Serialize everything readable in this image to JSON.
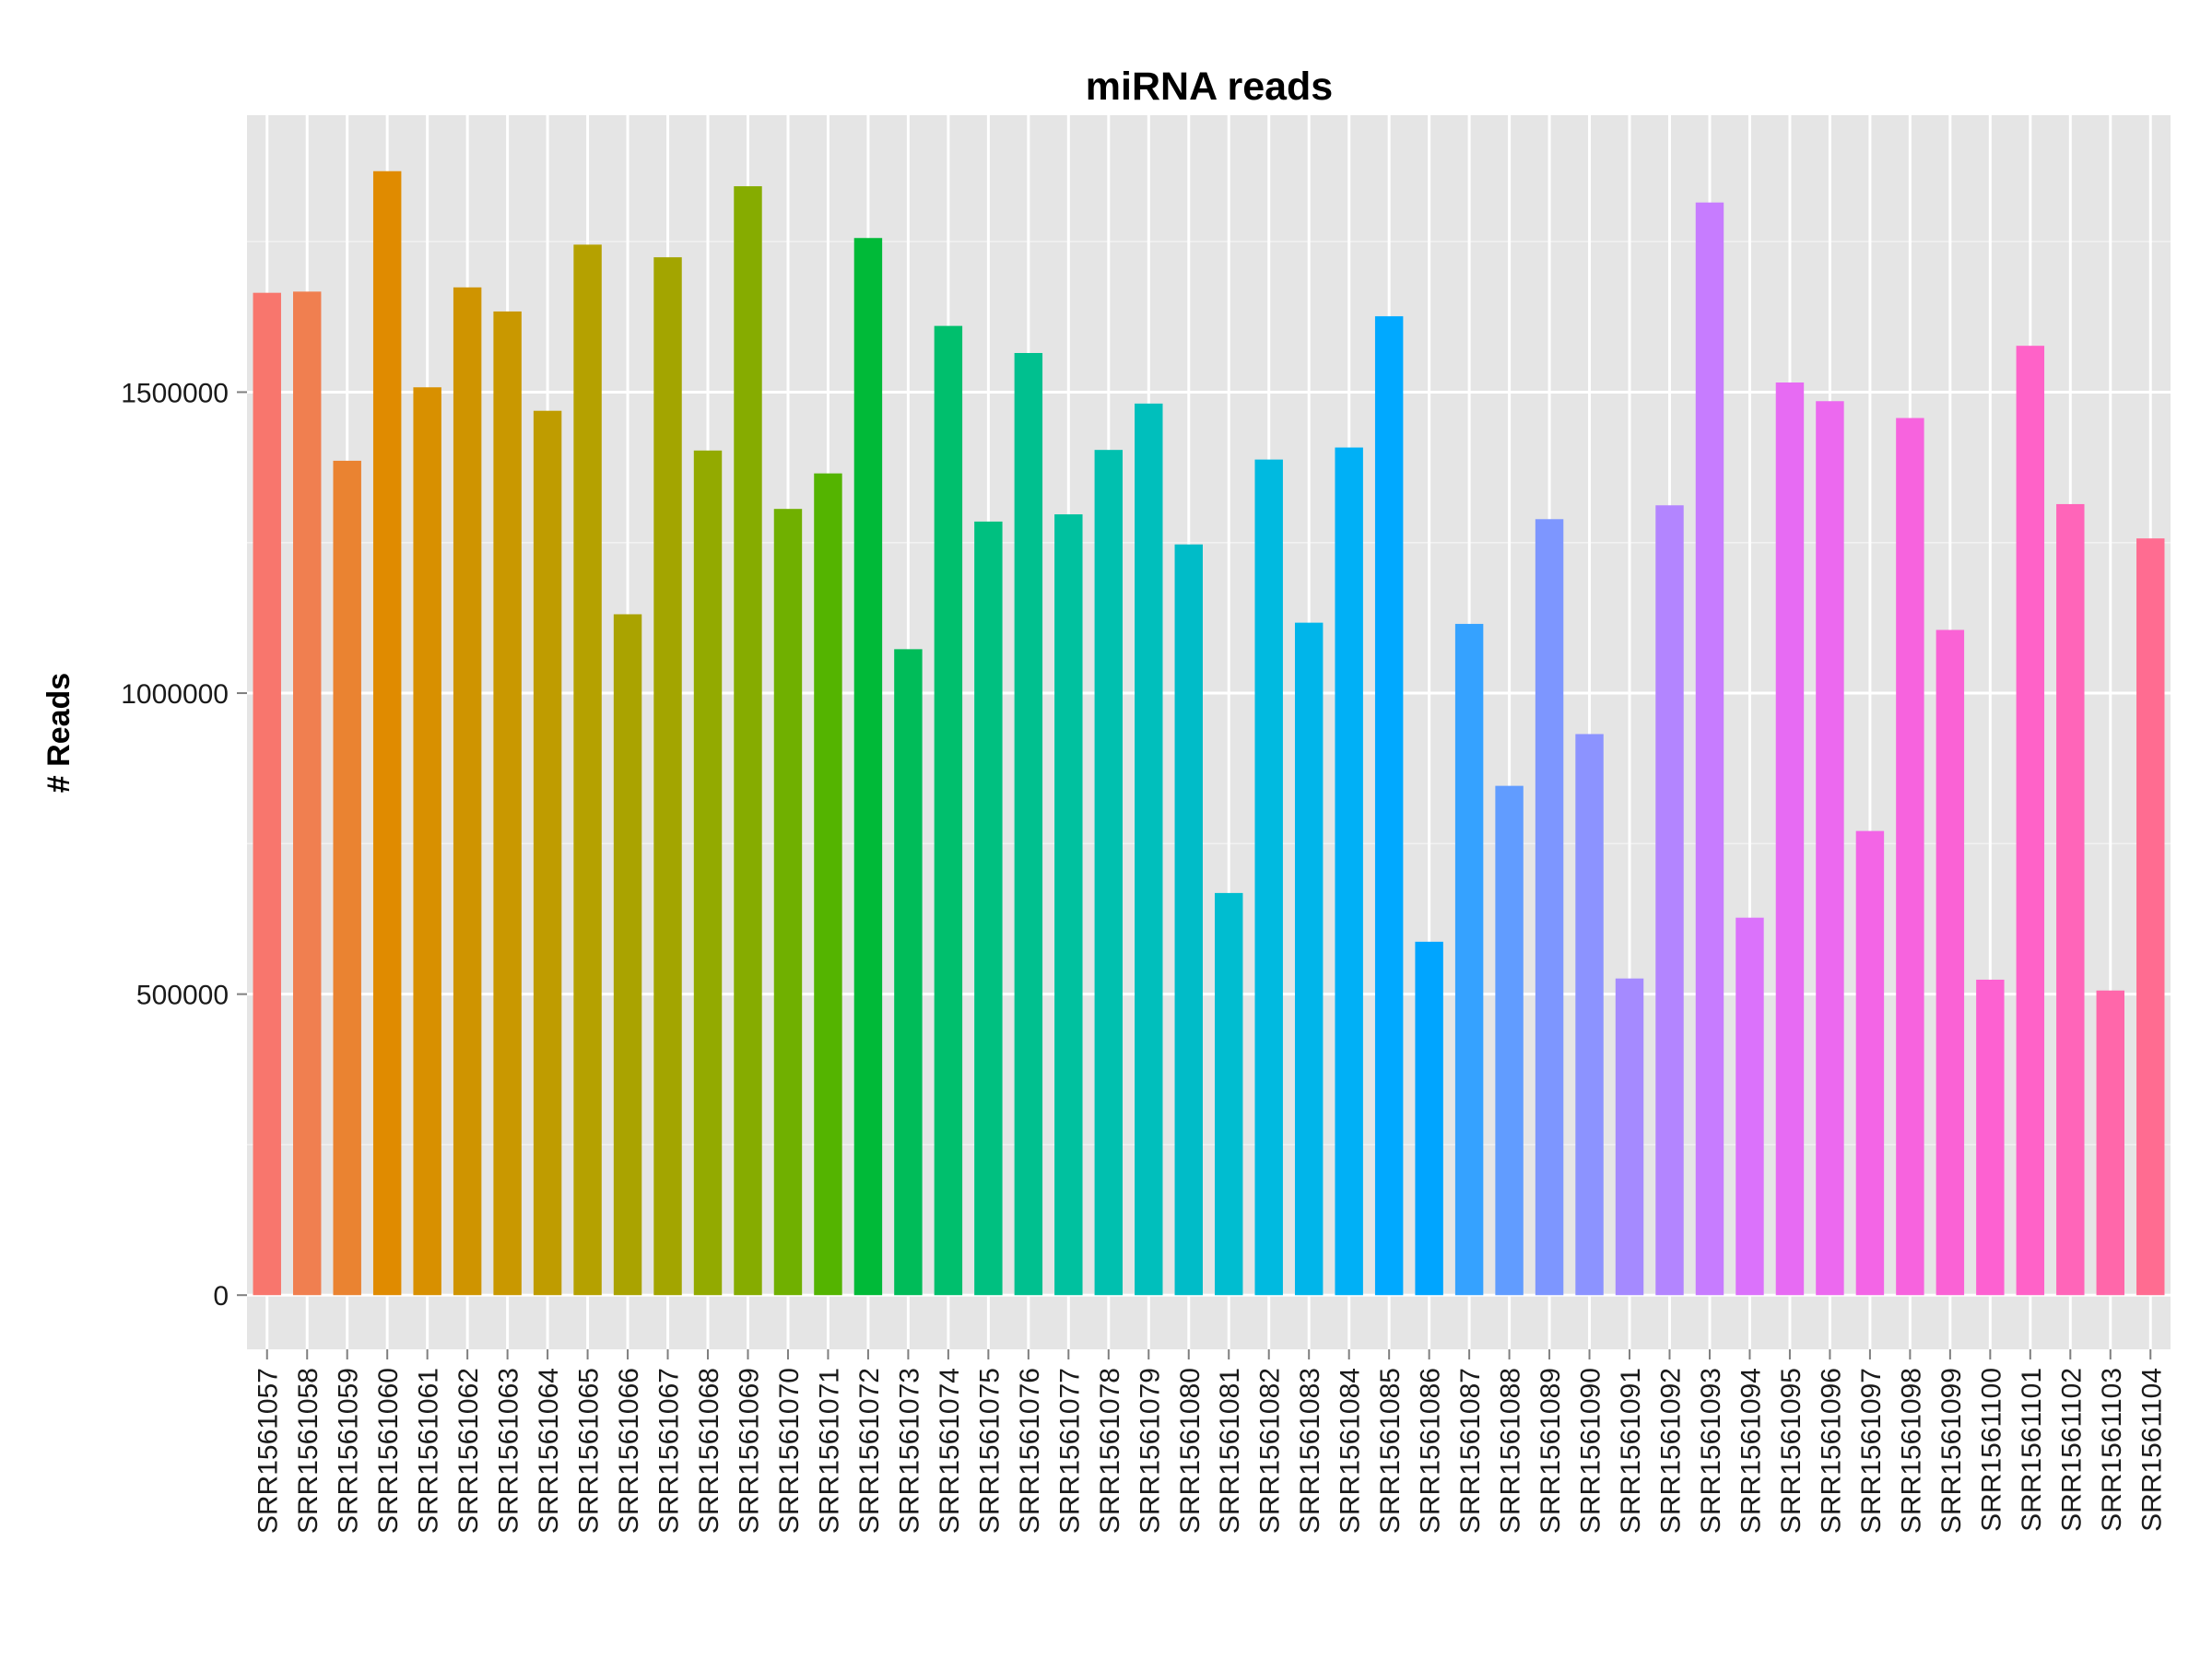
{
  "chart_data": {
    "type": "bar",
    "title": "miRNA reads",
    "xlabel": "",
    "ylabel": "# Reads",
    "ylim": [
      -90000,
      1960000
    ],
    "yticks": [
      0,
      500000,
      1000000,
      1500000
    ],
    "ytick_labels": [
      "0",
      "500000",
      "1000000",
      "1500000"
    ],
    "grid": true,
    "legend": "none",
    "categories": [
      "SRR1561057",
      "SRR1561058",
      "SRR1561059",
      "SRR1561060",
      "SRR1561061",
      "SRR1561062",
      "SRR1561063",
      "SRR1561064",
      "SRR1561065",
      "SRR1561066",
      "SRR1561067",
      "SRR1561068",
      "SRR1561069",
      "SRR1561070",
      "SRR1561071",
      "SRR1561072",
      "SRR1561073",
      "SRR1561074",
      "SRR1561075",
      "SRR1561076",
      "SRR1561077",
      "SRR1561078",
      "SRR1561079",
      "SRR1561080",
      "SRR1561081",
      "SRR1561082",
      "SRR1561083",
      "SRR1561084",
      "SRR1561085",
      "SRR1561086",
      "SRR1561087",
      "SRR1561088",
      "SRR1561089",
      "SRR1561090",
      "SRR1561091",
      "SRR1561092",
      "SRR1561093",
      "SRR1561094",
      "SRR1561095",
      "SRR1561096",
      "SRR1561097",
      "SRR1561098",
      "SRR1561099",
      "SRR1561100",
      "SRR1561101",
      "SRR1561102",
      "SRR1561103",
      "SRR1561104"
    ],
    "values": [
      1665000,
      1667000,
      1386000,
      1867000,
      1508000,
      1674000,
      1634000,
      1469000,
      1745000,
      1131000,
      1724000,
      1403000,
      1842000,
      1306000,
      1365000,
      1756000,
      1073000,
      1610000,
      1285000,
      1565000,
      1297000,
      1404000,
      1481000,
      1247000,
      668000,
      1388000,
      1117000,
      1408000,
      1626000,
      587000,
      1115000,
      846000,
      1289000,
      932000,
      526000,
      1312000,
      1815000,
      627000,
      1516000,
      1485000,
      771000,
      1457000,
      1105000,
      524000,
      1577000,
      1314000,
      506000,
      1257000
    ],
    "colors": [
      "#F8766D",
      "#F07F50",
      "#EA8331",
      "#E08B00",
      "#D89000",
      "#CF9400",
      "#C99800",
      "#BF9C00",
      "#B5A100",
      "#AAA300",
      "#A3A500",
      "#93AA00",
      "#86AC00",
      "#70B000",
      "#54B400",
      "#00BA38",
      "#00BC59",
      "#00BF6D",
      "#00C080",
      "#00C08F",
      "#00C19F",
      "#00C0AF",
      "#00BFBC",
      "#00BCC8",
      "#00BDD0",
      "#00BAE0",
      "#00B5EA",
      "#00B0F6",
      "#00A9FF",
      "#00A5FF",
      "#35A2FF",
      "#619CFF",
      "#7D96FF",
      "#8C93FF",
      "#A58AFF",
      "#B385FF",
      "#C77CFF",
      "#DB72FB",
      "#E76BF3",
      "#EC69EF",
      "#F365E6",
      "#F763DE",
      "#FA62D5",
      "#FD61D1",
      "#FF62C8",
      "#FF65B9",
      "#FF67AA",
      "#FF6C91"
    ]
  }
}
